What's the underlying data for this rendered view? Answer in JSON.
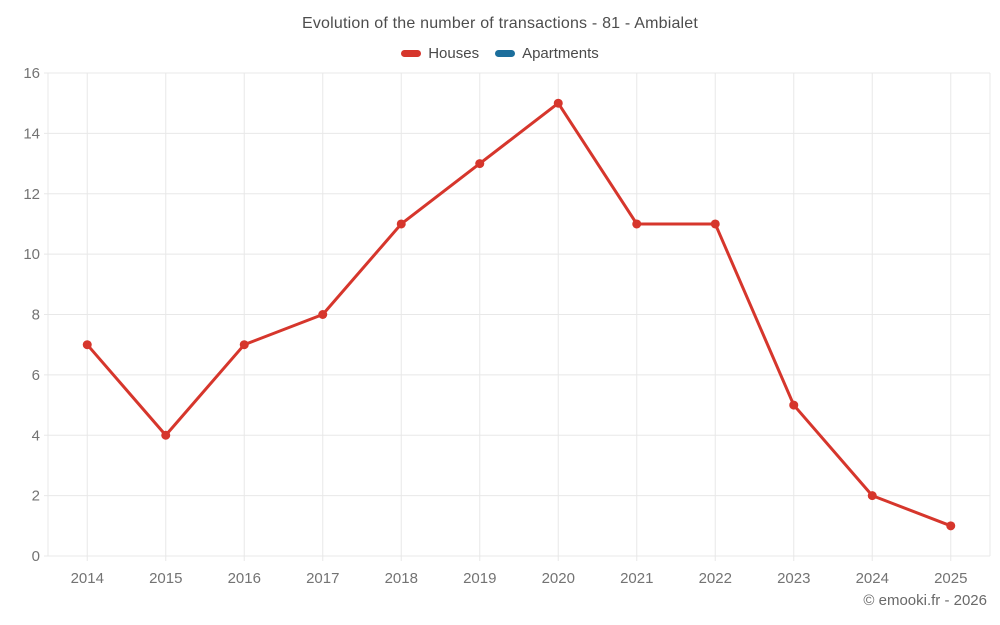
{
  "chart_data": {
    "type": "line",
    "title": "Evolution of the number of transactions - 81 - Ambialet",
    "categories": [
      "2014",
      "2015",
      "2016",
      "2017",
      "2018",
      "2019",
      "2020",
      "2021",
      "2022",
      "2023",
      "2024",
      "2025"
    ],
    "series": [
      {
        "name": "Houses",
        "color": "#d6362c",
        "values": [
          7,
          4,
          7,
          8,
          11,
          13,
          15,
          11,
          11,
          5,
          2,
          1
        ]
      },
      {
        "name": "Apartments",
        "color": "#1c6e9c",
        "values": []
      }
    ],
    "ylim": [
      0,
      16
    ],
    "yticks": [
      0,
      2,
      4,
      6,
      8,
      10,
      12,
      14,
      16
    ],
    "grid": true,
    "legend_position": "top",
    "footer": "© emooki.fr - 2026",
    "colors": {
      "grid": "#e8e8e8",
      "tick_label": "#737373"
    }
  }
}
